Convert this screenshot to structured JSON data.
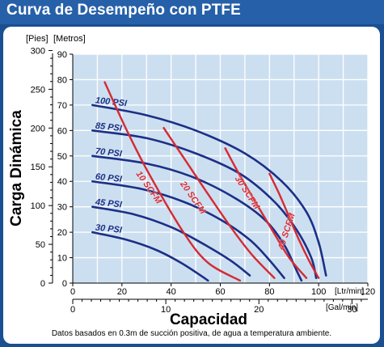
{
  "title": "Curva de Desempeño con PTFE",
  "footnote": "Datos basados en 0.3m de succión positiva, de agua a temperatura ambiente.",
  "colors": {
    "header": "#2660a8",
    "background": "#1a4f91",
    "plot_bg": "#ccdff0",
    "grid": "#ffffff",
    "psi_curve": "#1c2f86",
    "scfm_curve": "#d42b34"
  },
  "chart_data": {
    "type": "line",
    "title": "Curva de Desempeño con PTFE",
    "ylabel": "Carga Dinámica",
    "xlabel": "Capacidad",
    "y_left_unit": "[Pies]",
    "y_right_unit": "[Metros]",
    "x_bottom_unit": "[Ltr/min]",
    "x_secondary_unit": "[Gal/min]",
    "y_pies_ticks": [
      0,
      50,
      100,
      150,
      200,
      250,
      300
    ],
    "y_metros_ticks": [
      0,
      10,
      20,
      30,
      40,
      50,
      60,
      70,
      80,
      90
    ],
    "x_lpm_ticks": [
      0,
      20,
      40,
      60,
      80,
      100,
      120
    ],
    "x_gpm_ticks": [
      0,
      10,
      20,
      30
    ],
    "xlim_lpm": [
      0,
      120
    ],
    "ylim_m": [
      0,
      90
    ],
    "grid": true,
    "pressure_curves": [
      {
        "label": "100 PSI",
        "points": [
          [
            8,
            70
          ],
          [
            30,
            66
          ],
          [
            50,
            60
          ],
          [
            70,
            51
          ],
          [
            85,
            40
          ],
          [
            95,
            28
          ],
          [
            100,
            16
          ],
          [
            103,
            3
          ]
        ]
      },
      {
        "label": "85 PSI",
        "points": [
          [
            8,
            60
          ],
          [
            30,
            57
          ],
          [
            50,
            51
          ],
          [
            68,
            43
          ],
          [
            82,
            32
          ],
          [
            91,
            21
          ],
          [
            97,
            10
          ],
          [
            99,
            2
          ]
        ]
      },
      {
        "label": "70 PSI",
        "points": [
          [
            8,
            50
          ],
          [
            30,
            47
          ],
          [
            48,
            42
          ],
          [
            65,
            34
          ],
          [
            78,
            25
          ],
          [
            86,
            15
          ],
          [
            91,
            5
          ],
          [
            93,
            1
          ]
        ]
      },
      {
        "label": "60 PSI",
        "points": [
          [
            8,
            40
          ],
          [
            28,
            37
          ],
          [
            45,
            32
          ],
          [
            60,
            25
          ],
          [
            72,
            17
          ],
          [
            80,
            9
          ],
          [
            86,
            2
          ]
        ]
      },
      {
        "label": "45 PSI",
        "points": [
          [
            8,
            30
          ],
          [
            25,
            27
          ],
          [
            40,
            22
          ],
          [
            52,
            16
          ],
          [
            64,
            9
          ],
          [
            72,
            3
          ]
        ]
      },
      {
        "label": "30 PSI",
        "points": [
          [
            8,
            20
          ],
          [
            22,
            17
          ],
          [
            34,
            13
          ],
          [
            44,
            8
          ],
          [
            52,
            3
          ],
          [
            55,
            1
          ]
        ]
      }
    ],
    "air_curves": [
      {
        "label": "10 SCFM",
        "points": [
          [
            13,
            79
          ],
          [
            22,
            60
          ],
          [
            31,
            43
          ],
          [
            45,
            20
          ],
          [
            55,
            8
          ],
          [
            68,
            1
          ]
        ]
      },
      {
        "label": "20 SCFM",
        "points": [
          [
            37,
            61
          ],
          [
            46,
            48
          ],
          [
            55,
            35
          ],
          [
            65,
            21
          ],
          [
            73,
            11
          ],
          [
            82,
            2
          ]
        ]
      },
      {
        "label": "30 SCFM",
        "points": [
          [
            62,
            53
          ],
          [
            67,
            44
          ],
          [
            73,
            34
          ],
          [
            81,
            21
          ],
          [
            88,
            10
          ],
          [
            95,
            2
          ]
        ]
      },
      {
        "label": "40 SCFM",
        "points": [
          [
            80,
            43
          ],
          [
            84,
            35
          ],
          [
            88,
            26
          ],
          [
            92,
            17
          ],
          [
            96,
            9
          ],
          [
            100,
            2
          ]
        ]
      }
    ]
  }
}
